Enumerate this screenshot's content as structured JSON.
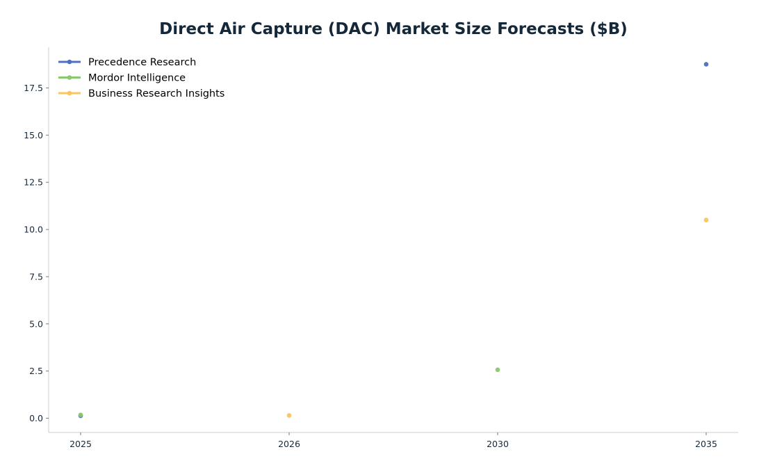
{
  "chart_data": {
    "type": "scatter",
    "title": "Direct Air Capture (DAC) Market Size Forecasts ($B)",
    "xlabel": "",
    "ylabel": "",
    "categories": [
      "2025",
      "2026",
      "2030",
      "2035"
    ],
    "y_ticks": [
      "0.0",
      "2.5",
      "5.0",
      "7.5",
      "10.0",
      "12.5",
      "15.0",
      "17.5"
    ],
    "ylim": [
      -0.75,
      19.65
    ],
    "grid": false,
    "legend_position": "top-left",
    "series": [
      {
        "name": "Precedence Research",
        "color": "#4e70c2",
        "points": [
          {
            "x": "2025",
            "y": 0.13
          },
          {
            "x": "2035",
            "y": 18.75
          }
        ]
      },
      {
        "name": "Mordor Intelligence",
        "color": "#8cc66e",
        "points": [
          {
            "x": "2025",
            "y": 0.18
          },
          {
            "x": "2030",
            "y": 2.57
          }
        ]
      },
      {
        "name": "Business Research Insights",
        "color": "#fac55a",
        "points": [
          {
            "x": "2026",
            "y": 0.15
          },
          {
            "x": "2035",
            "y": 10.5
          }
        ]
      }
    ]
  }
}
